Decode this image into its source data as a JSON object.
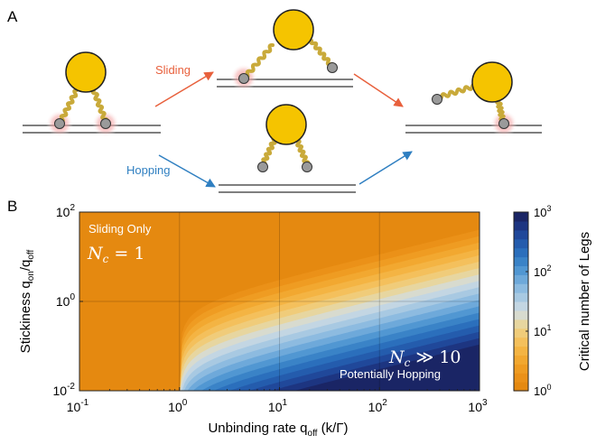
{
  "panel_a": {
    "label": "A",
    "arrow_top_label": "Sliding",
    "arrow_bottom_label": "Hopping",
    "colors": {
      "sliding": "#e8603c",
      "hopping": "#2f7fc1",
      "ball": "#f5c400",
      "leg": "#c9aa3a",
      "foot": "#9a9a9a",
      "glow": "#f3a6a6",
      "track": "#333333"
    }
  },
  "panel_b": {
    "label": "B",
    "annotation_top": "Sliding Only",
    "annotation_top_formula": "N",
    "annotation_top_formula_sub": "c",
    "annotation_top_formula_rest": " = 1",
    "annotation_bottom_formula": "N",
    "annotation_bottom_formula_sub": "c",
    "annotation_bottom_formula_rest": " ≫ 10",
    "annotation_bottom": "Potentially Hopping",
    "colorbar_label": "Critical number of Legs"
  },
  "chart_data": {
    "type": "heatmap",
    "xlabel": "Unbinding rate q",
    "xlabel_sub": "off",
    "xlabel_suffix": " (k/Γ)",
    "ylabel": "Stickiness q",
    "ylabel_sub1": "on",
    "ylabel_mid": "/q",
    "ylabel_sub2": "off",
    "x_scale": "log",
    "y_scale": "log",
    "xlim": [
      0.1,
      1000
    ],
    "ylim": [
      0.01,
      100
    ],
    "x_ticks": [
      {
        "value": 0.1,
        "base": "10",
        "exp": "-1"
      },
      {
        "value": 1,
        "base": "10",
        "exp": "0"
      },
      {
        "value": 10,
        "base": "10",
        "exp": "1"
      },
      {
        "value": 100,
        "base": "10",
        "exp": "2"
      },
      {
        "value": 1000,
        "base": "10",
        "exp": "3"
      }
    ],
    "y_ticks": [
      {
        "value": 0.01,
        "base": "10",
        "exp": "-2"
      },
      {
        "value": 1,
        "base": "10",
        "exp": "0"
      },
      {
        "value": 100,
        "base": "10",
        "exp": "2"
      }
    ],
    "grid": true,
    "colorbar_range": [
      1,
      1000
    ],
    "colorbar_scale": "log",
    "colorbar_ticks": [
      {
        "value": 1,
        "base": "10",
        "exp": "0"
      },
      {
        "value": 10,
        "base": "10",
        "exp": "1"
      },
      {
        "value": 100,
        "base": "10",
        "exp": "2"
      },
      {
        "value": 1000,
        "base": "10",
        "exp": "3"
      }
    ],
    "colormap": [
      "#e58910",
      "#eb9118",
      "#ef9c22",
      "#f2a830",
      "#f4b443",
      "#f4c05c",
      "#f0cc7a",
      "#e7d6a0",
      "#d8dbcf",
      "#c3d6e3",
      "#a8c9e2",
      "#8dbbe0",
      "#6ea9da",
      "#5197d2",
      "#3a83c7",
      "#2b6fbc",
      "#245cad",
      "#20489a",
      "#1d3581",
      "#1a2565"
    ]
  }
}
